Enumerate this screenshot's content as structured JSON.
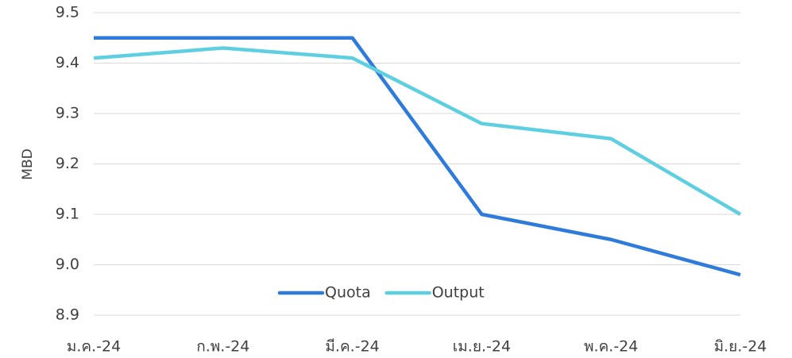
{
  "chart_data": {
    "type": "line",
    "categories": [
      "ม.ค.-24",
      "ก.พ.-24",
      "มี.ค.-24",
      "เม.ย.-24",
      "พ.ค.-24",
      "มิ.ย.-24"
    ],
    "series": [
      {
        "name": "Quota",
        "color": "#2e7bdc",
        "values": [
          9.45,
          9.45,
          9.45,
          9.1,
          9.05,
          8.98
        ]
      },
      {
        "name": "Output",
        "color": "#5dcfe0",
        "values": [
          9.41,
          9.43,
          9.41,
          9.28,
          9.25,
          9.1
        ]
      }
    ],
    "y_label": "MBD",
    "ylim": [
      8.9,
      9.5
    ],
    "yticks": [
      8.9,
      {
        "value": 9,
        "label": "9.0"
      },
      9.1,
      9.2,
      9.3,
      9.4,
      9.5
    ],
    "grid": true,
    "legend": "bottom"
  }
}
